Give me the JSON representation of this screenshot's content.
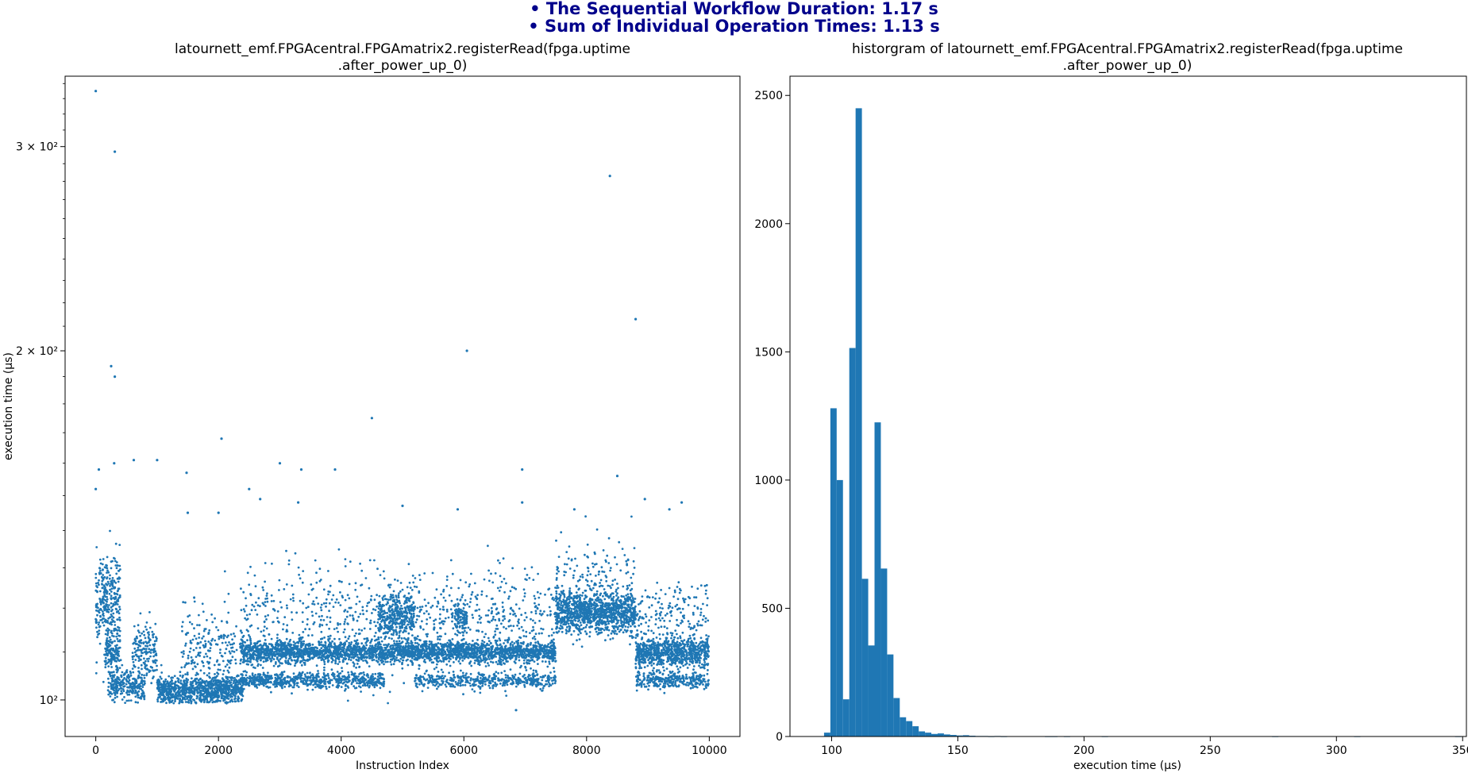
{
  "suptitle": {
    "line1": "• The Sequential Workflow Duration: 1.17 s",
    "line2": "• Sum of Individual Operation Times: 1.13 s"
  },
  "colors": {
    "marks": "#1f77b4",
    "suptitle": "#00008b"
  },
  "chart_data": [
    {
      "type": "scatter",
      "title": "latournett_emf.FPGAcentral.FPGAmatrix2.registerRead(fpga.uptime\n.after_power_up_0)",
      "xlabel": "Instruction Index",
      "ylabel": "execution time (µs)",
      "xlim": [
        -500,
        10500
      ],
      "ylim": [
        93,
        345
      ],
      "yscale": "log",
      "xticks": [
        0,
        2000,
        4000,
        6000,
        8000,
        10000
      ],
      "yticks": [
        {
          "value": 100,
          "label": "10²"
        },
        {
          "value": 200,
          "label": "2 × 10²"
        },
        {
          "value": 300,
          "label": "3 × 10²"
        }
      ],
      "n_points": 10000,
      "clusters": [
        {
          "x": [
            0,
            400
          ],
          "center": 122,
          "spread": 6,
          "count": 300
        },
        {
          "x": [
            150,
            400
          ],
          "center": 110,
          "spread": 2,
          "count": 150
        },
        {
          "x": [
            200,
            800
          ],
          "center": 103,
          "spread": 1.5,
          "count": 260
        },
        {
          "x": [
            600,
            1000
          ],
          "center": 110,
          "spread": 3,
          "count": 170
        },
        {
          "x": [
            1000,
            2400
          ],
          "center": 102,
          "spread": 1.5,
          "count": 900
        },
        {
          "x": [
            1400,
            2300
          ],
          "center": 110,
          "spread": 5,
          "count": 220
        },
        {
          "x": [
            2350,
            7500
          ],
          "center": 110,
          "spread": 1.2,
          "count": 2700
        },
        {
          "x": [
            2350,
            4700
          ],
          "center": 104,
          "spread": 0.8,
          "count": 700
        },
        {
          "x": [
            4600,
            5200
          ],
          "center": 118,
          "spread": 2.5,
          "count": 350
        },
        {
          "x": [
            5200,
            7500
          ],
          "center": 104,
          "spread": 0.8,
          "count": 450
        },
        {
          "x": [
            2350,
            7500
          ],
          "center": 118,
          "spread": 6,
          "count": 850
        },
        {
          "x": [
            5850,
            6050
          ],
          "center": 118,
          "spread": 2,
          "count": 100
        },
        {
          "x": [
            7500,
            8800
          ],
          "center": 119,
          "spread": 2.5,
          "count": 1100
        },
        {
          "x": [
            7500,
            8800
          ],
          "center": 128,
          "spread": 5,
          "count": 150
        },
        {
          "x": [
            8800,
            9990
          ],
          "center": 110,
          "spread": 1.5,
          "count": 800
        },
        {
          "x": [
            8800,
            9990
          ],
          "center": 104,
          "spread": 0.8,
          "count": 300
        },
        {
          "x": [
            8800,
            9990
          ],
          "center": 118,
          "spread": 4,
          "count": 180
        }
      ],
      "outliers": [
        {
          "x": 0,
          "y": 335
        },
        {
          "x": 310,
          "y": 297
        },
        {
          "x": 250,
          "y": 194
        },
        {
          "x": 310,
          "y": 190
        },
        {
          "x": 8380,
          "y": 283
        },
        {
          "x": 8800,
          "y": 213
        },
        {
          "x": 6050,
          "y": 200
        },
        {
          "x": 4500,
          "y": 175
        },
        {
          "x": 2050,
          "y": 168
        },
        {
          "x": 1000,
          "y": 161
        },
        {
          "x": 620,
          "y": 161
        },
        {
          "x": 3000,
          "y": 160
        },
        {
          "x": 3350,
          "y": 158
        },
        {
          "x": 3900,
          "y": 158
        },
        {
          "x": 1480,
          "y": 157
        },
        {
          "x": 6950,
          "y": 158
        },
        {
          "x": 8500,
          "y": 156
        },
        {
          "x": 50,
          "y": 158
        },
        {
          "x": 300,
          "y": 160
        },
        {
          "x": 2500,
          "y": 152
        },
        {
          "x": 2680,
          "y": 149
        },
        {
          "x": 3300,
          "y": 148
        },
        {
          "x": 5000,
          "y": 147
        },
        {
          "x": 5900,
          "y": 146
        },
        {
          "x": 6950,
          "y": 148
        },
        {
          "x": 7800,
          "y": 146
        },
        {
          "x": 9350,
          "y": 146
        },
        {
          "x": 9550,
          "y": 148
        },
        {
          "x": 8950,
          "y": 149
        },
        {
          "x": 6850,
          "y": 98
        },
        {
          "x": 0,
          "y": 152
        },
        {
          "x": 1500,
          "y": 145
        },
        {
          "x": 2000,
          "y": 145
        }
      ]
    },
    {
      "type": "bar",
      "title": "historgram of latournett_emf.FPGAcentral.FPGAmatrix2.registerRead(fpga.uptime\n.after_power_up_0)",
      "xlabel": "execution time (µs)",
      "ylabel": "",
      "xlim": [
        83.5,
        351.5
      ],
      "ylim": [
        0,
        2575
      ],
      "xticks": [
        100,
        150,
        200,
        250,
        300,
        350
      ],
      "yticks": [
        0,
        500,
        1000,
        1500,
        2000,
        2500
      ],
      "bin_start": 97,
      "bin_width": 2.5,
      "values": [
        15,
        1280,
        1000,
        145,
        1515,
        2450,
        615,
        355,
        1225,
        655,
        320,
        150,
        75,
        60,
        40,
        20,
        15,
        10,
        12,
        8,
        6,
        4,
        5,
        3,
        2,
        2,
        1,
        2,
        1,
        0,
        0,
        0,
        0,
        0,
        0,
        1,
        1,
        0,
        1,
        0,
        0,
        0,
        0,
        0,
        1,
        0,
        0,
        0,
        0,
        0,
        0,
        0,
        0,
        0,
        0,
        0,
        0,
        0,
        0,
        0,
        0,
        0,
        0,
        0,
        0,
        0,
        0,
        0,
        0,
        0,
        0,
        1,
        0,
        0,
        0,
        0,
        0,
        0,
        0,
        0,
        0,
        0,
        0,
        0,
        1,
        0,
        0,
        0,
        0,
        0,
        0,
        0,
        0,
        0,
        0,
        0,
        0,
        0,
        0,
        0,
        1
      ]
    }
  ]
}
